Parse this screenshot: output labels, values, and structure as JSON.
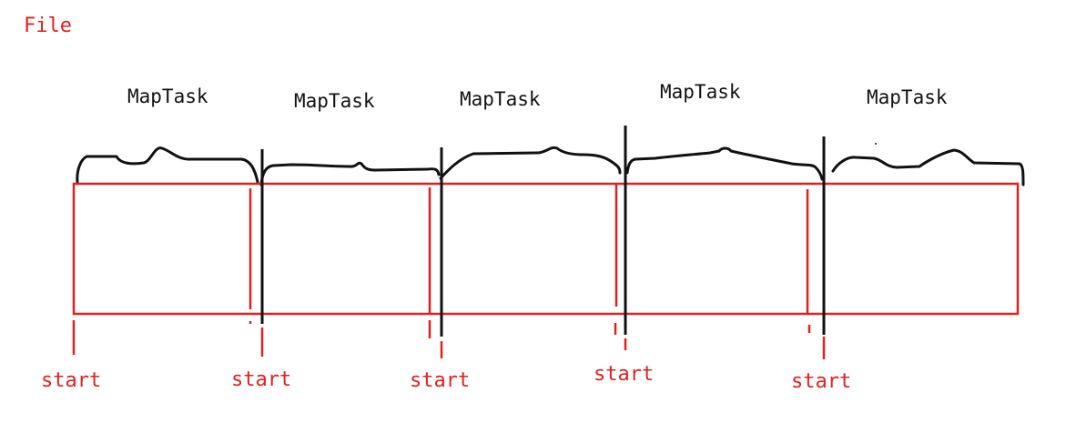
{
  "file_label": "File",
  "map_tasks": [
    "MapTask",
    "MapTask",
    "MapTask",
    "MapTask",
    "MapTask"
  ],
  "start_labels": [
    "start",
    "start",
    "start",
    "start",
    "start"
  ],
  "colors": {
    "file": "#e02020",
    "task": "#111111"
  }
}
